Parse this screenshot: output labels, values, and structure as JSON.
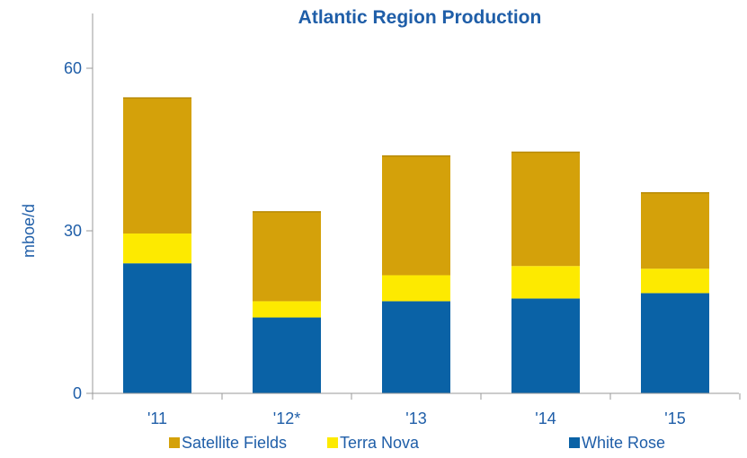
{
  "chart_data": {
    "type": "bar",
    "stacked": true,
    "title": "Atlantic Region Production",
    "xlabel": "",
    "ylabel": "mboe/d",
    "ylim": [
      0,
      60
    ],
    "yticks": [
      "0",
      "30",
      "60"
    ],
    "grid": false,
    "legend_position": "bottom",
    "categories": [
      "'11",
      "'12*",
      "'13",
      "'14",
      "'15"
    ],
    "series": [
      {
        "name": "White Rose",
        "color": "#0a62a6",
        "values": [
          24,
          14,
          17,
          17.5,
          18.5
        ]
      },
      {
        "name": "Terra Nova",
        "color": "#fdea00",
        "values": [
          5.5,
          3,
          4.8,
          6,
          4.5
        ]
      },
      {
        "name": "Satellite Fields",
        "color": "#d4a10a",
        "values": [
          25,
          16.5,
          22,
          21,
          14
        ]
      }
    ],
    "legend_order": [
      "Satellite Fields",
      "Terra Nova",
      "White Rose"
    ]
  }
}
